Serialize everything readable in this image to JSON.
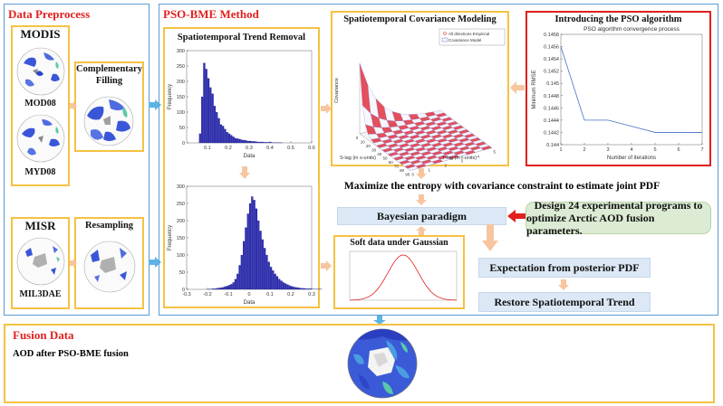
{
  "sections": {
    "preprocess_title": "Data Preprocess",
    "pso_bme_title": "PSO-BME Method",
    "fusion_title": "Fusion Data"
  },
  "preprocess": {
    "modis_label": "MODIS",
    "mod08_label": "MOD08",
    "myd08_label": "MYD08",
    "complementary_label": "Complementary Filling",
    "misr_label": "MISR",
    "mil3dae_label": "MIL3DAE",
    "resampling_label": "Resampling"
  },
  "pso_bme": {
    "trend_removal_title": "Spatiotemporal Trend Removal",
    "covariance_title": "Spatiotemporal Covariance Modeling",
    "pso_intro_title": "Introducing the PSO algorithm",
    "maximize_entropy": "Maximize the entropy with covariance constraint to estimate joint PDF",
    "bayesian": "Bayesian paradigm",
    "design_line1": "Design 24 experimental programs to",
    "design_line2": "optimize Arctic AOD fusion parameters.",
    "soft_data_title": "Soft data under Gaussian",
    "expectation": "Expectation from posterior PDF",
    "restore": "Restore Spatiotemporal Trend"
  },
  "fusion": {
    "aod_label": "AOD after PSO-BME fusion"
  },
  "chart_data": [
    {
      "id": "histogram-upper",
      "type": "bar",
      "xlabel": "Data",
      "ylabel": "Frequency",
      "xlim": [
        0,
        0.6
      ],
      "ylim": [
        0,
        300
      ],
      "xticks": [
        "0.1",
        "0.2",
        "0.3",
        "0.4",
        "0.5",
        "0.6"
      ],
      "yticks": [
        "0",
        "50",
        "100",
        "150",
        "200",
        "250",
        "300"
      ],
      "bin_start": 0.06,
      "bin_width": 0.01,
      "values": [
        30,
        150,
        260,
        240,
        210,
        180,
        160,
        120,
        100,
        80,
        60,
        55,
        45,
        35,
        30,
        25,
        20,
        15,
        14,
        12,
        10,
        9,
        8,
        6,
        6,
        5,
        5,
        4,
        3,
        3,
        3,
        2,
        2,
        2,
        2,
        1,
        1,
        1,
        1,
        1
      ]
    },
    {
      "id": "histogram-lower",
      "type": "bar",
      "xlabel": "Data",
      "ylabel": "Frequency",
      "xlim": [
        -0.3,
        0.3
      ],
      "ylim": [
        0,
        300
      ],
      "xticks": [
        "-0.3",
        "-0.2",
        "-0.1",
        "0",
        "0.1",
        "0.2",
        "0.3"
      ],
      "yticks": [
        "0",
        "50",
        "100",
        "150",
        "200",
        "250",
        "300"
      ],
      "bin_start": -0.2,
      "bin_width": 0.01,
      "values": [
        1,
        1,
        2,
        2,
        3,
        4,
        5,
        6,
        8,
        10,
        12,
        15,
        20,
        30,
        45,
        70,
        100,
        140,
        180,
        220,
        250,
        270,
        260,
        235,
        200,
        170,
        145,
        120,
        100,
        80,
        65,
        55,
        45,
        38,
        30,
        25,
        20,
        17,
        14,
        11,
        9,
        7,
        6,
        5,
        4,
        3,
        3,
        2,
        2,
        2,
        1,
        1,
        1,
        1,
        1
      ]
    },
    {
      "id": "pso-convergence",
      "type": "line",
      "title": "PSO algorithm convergence process",
      "xlabel": "Number of iterations",
      "ylabel": "Minimum RMSE",
      "xlim": [
        1,
        7
      ],
      "ylim": [
        0.144,
        0.1458
      ],
      "xticks": [
        "1",
        "2",
        "3",
        "4",
        "5",
        "6",
        "7"
      ],
      "yticks": [
        "0.144",
        "0.1442",
        "0.1444",
        "0.1446",
        "0.1448",
        "0.145",
        "0.1452",
        "0.1454",
        "0.1456",
        "0.1458"
      ],
      "x": [
        1,
        2,
        3,
        4,
        5,
        6,
        7
      ],
      "y": [
        0.1456,
        0.1444,
        0.1444,
        0.1443,
        0.1442,
        0.1442,
        0.1442
      ],
      "line_color": "#4472c4"
    },
    {
      "id": "covariance-surface",
      "type": "surface",
      "xlabel": "S-lag (in s-units)",
      "ylabel": "T-lag (in t-units)",
      "zlabel": "Covariance",
      "legend": [
        "All directions Empirical",
        "Covariance Model"
      ],
      "legend_position": "top-right",
      "xticks": [
        "0",
        "10",
        "20",
        "30",
        "40",
        "50",
        "60",
        "70",
        "80",
        "90"
      ],
      "yticks": [
        "0",
        "1",
        "2",
        "3",
        "4",
        "5"
      ],
      "colors": [
        "#e03040",
        "#8080d0"
      ]
    },
    {
      "id": "gaussian-curve",
      "type": "line",
      "title": "Soft data under Gaussian",
      "curve_color": "#e02020",
      "mean": 0,
      "std": 1
    }
  ],
  "colors": {
    "section_title": "#e02020",
    "frame_blue": "#5b9bd5",
    "frame_gold": "#f5c242",
    "arrow_orange": "#f7c6a0",
    "arrow_blue": "#5bb4e5",
    "arrow_red": "#e02020",
    "bar_fill": "#2f2fb0"
  }
}
